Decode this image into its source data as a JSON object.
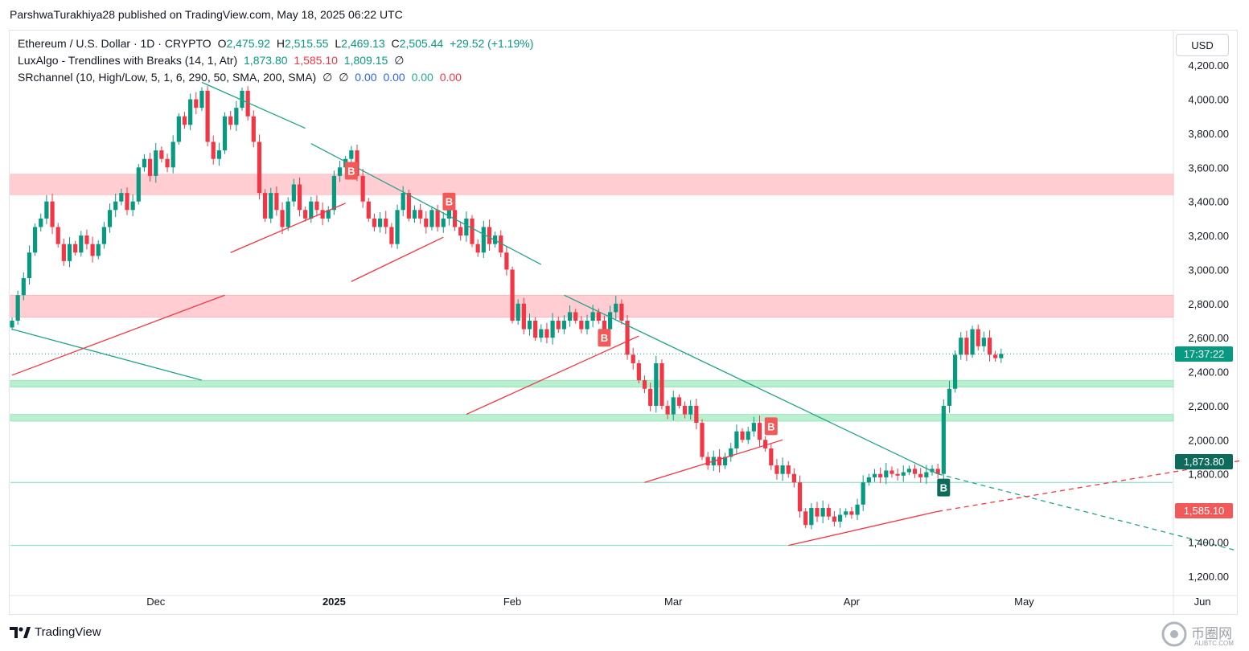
{
  "header": {
    "published_line": "ParshwaTurakhiya28 published on TradingView.com, May 18, 2025 06:22 UTC"
  },
  "legend": {
    "symbol": "Ethereum / U.S. Dollar · 1D · CRYPTO",
    "o_label": "O",
    "o_value": "2,475.92",
    "h_label": "H",
    "h_value": "2,515.55",
    "l_label": "L",
    "l_value": "2,469.13",
    "c_label": "C",
    "c_value": "2,505.44",
    "change": "+29.52 (+1.19%)",
    "luxalgo_name": "LuxAlgo - Trendlines with Breaks (14, 1, Atr)",
    "luxalgo_v1": "1,873.80",
    "luxalgo_v2": "1,585.10",
    "luxalgo_v3": "1,809.15",
    "luxalgo_na": "∅",
    "sr_name": "SRchannel (10, High/Low, 5, 1, 6, 290, 50, SMA, 200, SMA)",
    "sr_na1": "∅",
    "sr_na2": "∅",
    "sr_v1": "0.00",
    "sr_v2": "0.00",
    "sr_v3": "0.00",
    "sr_v4": "0.00"
  },
  "currency": "USD",
  "tags": {
    "countdown": "17:37:22",
    "upper_trend": "1,873.80",
    "lower_trend": "1,585.10"
  },
  "footer": {
    "brand": "TradingView",
    "watermark": "币圈网",
    "watermark_url": "ALIBTC.COM"
  },
  "colors": {
    "up": "#089981",
    "down": "#f23645",
    "resistance_zone": "#ffcdd2",
    "support_zone": "#b9f0cf",
    "trend_green": "#22a28a",
    "trend_red": "#f23645"
  },
  "chart_data": {
    "type": "candlestick",
    "title": "Ethereum / U.S. Dollar · 1D · CRYPTO",
    "ylim": [
      1100,
      4300
    ],
    "y_ticks": [
      1200,
      1400,
      1600,
      1800,
      2000,
      2200,
      2400,
      2600,
      2800,
      3000,
      3200,
      3400,
      3600,
      3800,
      4000,
      4200
    ],
    "y_tick_labels": [
      "1,200.00",
      "1,400.00",
      "1,600.00",
      "1,800.00",
      "2,000.00",
      "2,200.00",
      "2,400.00",
      "2,600.00",
      "2,800.00",
      "3,000.00",
      "3,200.00",
      "3,400.00",
      "3,600.00",
      "3,800.00",
      "4,000.00",
      "4,200.00"
    ],
    "x_range_days": [
      0,
      215
    ],
    "x_ticks": [
      {
        "day": 25,
        "label": "Dec",
        "bold": false
      },
      {
        "day": 56,
        "label": "2025",
        "bold": true
      },
      {
        "day": 87,
        "label": "Feb",
        "bold": false
      },
      {
        "day": 115,
        "label": "Mar",
        "bold": false
      },
      {
        "day": 146,
        "label": "Apr",
        "bold": false
      },
      {
        "day": 176,
        "label": "May",
        "bold": false
      },
      {
        "day": 207,
        "label": "Jun",
        "bold": false
      }
    ],
    "ohlc_keypoints": [
      [
        0,
        2700
      ],
      [
        1,
        2850
      ],
      [
        2,
        2950
      ],
      [
        3,
        3100
      ],
      [
        4,
        3250
      ],
      [
        5,
        3300
      ],
      [
        6,
        3400
      ],
      [
        7,
        3250
      ],
      [
        8,
        3150
      ],
      [
        9,
        3050
      ],
      [
        10,
        3150
      ],
      [
        11,
        3100
      ],
      [
        12,
        3200
      ],
      [
        13,
        3150
      ],
      [
        14,
        3080
      ],
      [
        15,
        3150
      ],
      [
        16,
        3250
      ],
      [
        17,
        3350
      ],
      [
        18,
        3400
      ],
      [
        19,
        3450
      ],
      [
        20,
        3350
      ],
      [
        21,
        3400
      ],
      [
        22,
        3600
      ],
      [
        23,
        3650
      ],
      [
        24,
        3550
      ],
      [
        25,
        3700
      ],
      [
        26,
        3650
      ],
      [
        27,
        3600
      ],
      [
        28,
        3750
      ],
      [
        29,
        3900
      ],
      [
        30,
        3850
      ],
      [
        31,
        4000
      ],
      [
        32,
        3950
      ],
      [
        33,
        4050
      ],
      [
        34,
        3750
      ],
      [
        35,
        3650
      ],
      [
        36,
        3700
      ],
      [
        37,
        3900
      ],
      [
        38,
        3850
      ],
      [
        39,
        3950
      ],
      [
        40,
        4050
      ],
      [
        41,
        3900
      ],
      [
        42,
        3750
      ],
      [
        43,
        3450
      ],
      [
        44,
        3300
      ],
      [
        45,
        3450
      ],
      [
        46,
        3350
      ],
      [
        47,
        3250
      ],
      [
        48,
        3400
      ],
      [
        49,
        3500
      ],
      [
        50,
        3350
      ],
      [
        51,
        3300
      ],
      [
        52,
        3400
      ],
      [
        53,
        3350
      ],
      [
        54,
        3300
      ],
      [
        55,
        3350
      ],
      [
        56,
        3550
      ],
      [
        57,
        3600
      ],
      [
        58,
        3650
      ],
      [
        59,
        3700
      ],
      [
        60,
        3550
      ],
      [
        61,
        3400
      ],
      [
        62,
        3300
      ],
      [
        63,
        3250
      ],
      [
        64,
        3300
      ],
      [
        65,
        3250
      ],
      [
        66,
        3150
      ],
      [
        67,
        3350
      ],
      [
        68,
        3450
      ],
      [
        69,
        3300
      ],
      [
        70,
        3350
      ],
      [
        71,
        3300
      ],
      [
        72,
        3250
      ],
      [
        73,
        3350
      ],
      [
        74,
        3250
      ],
      [
        75,
        3300
      ],
      [
        76,
        3350
      ],
      [
        77,
        3250
      ],
      [
        78,
        3200
      ],
      [
        79,
        3300
      ],
      [
        80,
        3150
      ],
      [
        81,
        3100
      ],
      [
        82,
        3250
      ],
      [
        83,
        3150
      ],
      [
        84,
        3200
      ],
      [
        85,
        3100
      ],
      [
        86,
        3000
      ],
      [
        87,
        2700
      ],
      [
        88,
        2800
      ],
      [
        89,
        2650
      ],
      [
        90,
        2700
      ],
      [
        91,
        2600
      ],
      [
        92,
        2650
      ],
      [
        93,
        2600
      ],
      [
        94,
        2700
      ],
      [
        95,
        2650
      ],
      [
        96,
        2700
      ],
      [
        97,
        2750
      ],
      [
        98,
        2700
      ],
      [
        99,
        2650
      ],
      [
        100,
        2700
      ],
      [
        101,
        2750
      ],
      [
        102,
        2700
      ],
      [
        103,
        2650
      ],
      [
        104,
        2750
      ],
      [
        105,
        2800
      ],
      [
        106,
        2700
      ],
      [
        107,
        2500
      ],
      [
        108,
        2450
      ],
      [
        109,
        2350
      ],
      [
        110,
        2300
      ],
      [
        111,
        2200
      ],
      [
        112,
        2450
      ],
      [
        113,
        2200
      ],
      [
        114,
        2150
      ],
      [
        115,
        2250
      ],
      [
        116,
        2200
      ],
      [
        117,
        2150
      ],
      [
        118,
        2200
      ],
      [
        119,
        2100
      ],
      [
        120,
        1900
      ],
      [
        121,
        1850
      ],
      [
        122,
        1900
      ],
      [
        123,
        1850
      ],
      [
        124,
        1900
      ],
      [
        125,
        1950
      ],
      [
        126,
        2050
      ],
      [
        127,
        2000
      ],
      [
        128,
        2050
      ],
      [
        129,
        2100
      ],
      [
        130,
        2000
      ],
      [
        131,
        1950
      ],
      [
        132,
        1850
      ],
      [
        133,
        1800
      ],
      [
        134,
        1850
      ],
      [
        135,
        1800
      ],
      [
        136,
        1750
      ],
      [
        137,
        1580
      ],
      [
        138,
        1500
      ],
      [
        139,
        1600
      ],
      [
        140,
        1550
      ],
      [
        141,
        1600
      ],
      [
        142,
        1550
      ],
      [
        143,
        1520
      ],
      [
        144,
        1560
      ],
      [
        145,
        1580
      ],
      [
        146,
        1560
      ],
      [
        147,
        1620
      ],
      [
        148,
        1750
      ],
      [
        149,
        1780
      ],
      [
        150,
        1800
      ],
      [
        151,
        1780
      ],
      [
        152,
        1820
      ],
      [
        153,
        1800
      ],
      [
        154,
        1790
      ],
      [
        155,
        1810
      ],
      [
        156,
        1830
      ],
      [
        157,
        1800
      ],
      [
        158,
        1780
      ],
      [
        159,
        1810
      ],
      [
        160,
        1830
      ],
      [
        161,
        1800
      ],
      [
        162,
        2200
      ],
      [
        163,
        2300
      ],
      [
        164,
        2500
      ],
      [
        165,
        2600
      ],
      [
        166,
        2500
      ],
      [
        167,
        2650
      ],
      [
        168,
        2550
      ],
      [
        169,
        2600
      ],
      [
        170,
        2500
      ],
      [
        171,
        2480
      ],
      [
        172,
        2505
      ]
    ],
    "first_date_approx": "2024-11-01",
    "zones": [
      {
        "kind": "resistance",
        "low": 3440,
        "high": 3560
      },
      {
        "kind": "resistance",
        "low": 2720,
        "high": 2850
      },
      {
        "kind": "support",
        "low": 2310,
        "high": 2350
      },
      {
        "kind": "support",
        "low": 2110,
        "high": 2150
      }
    ],
    "horizontal_levels": [
      1750,
      1380
    ],
    "trendlines": [
      {
        "color": "green",
        "from": [
          0,
          2650
        ],
        "to": [
          33,
          2350
        ]
      },
      {
        "color": "green",
        "from": [
          33,
          4100
        ],
        "to": [
          51,
          3830
        ]
      },
      {
        "color": "green",
        "from": [
          52,
          3740
        ],
        "to": [
          92,
          3030
        ]
      },
      {
        "color": "green",
        "from": [
          96,
          2850
        ],
        "to": [
          161,
          1800
        ]
      },
      {
        "color": "green",
        "from": [
          161,
          1800
        ],
        "to": [
          213,
          1350
        ],
        "dashed": true
      },
      {
        "color": "red",
        "from": [
          0,
          2380
        ],
        "to": [
          37,
          2850
        ]
      },
      {
        "color": "red",
        "from": [
          38,
          3100
        ],
        "to": [
          58,
          3390
        ]
      },
      {
        "color": "red",
        "from": [
          59,
          2930
        ],
        "to": [
          75,
          3190
        ]
      },
      {
        "color": "red",
        "from": [
          79,
          2150
        ],
        "to": [
          109,
          2610
        ]
      },
      {
        "color": "red",
        "from": [
          110,
          1750
        ],
        "to": [
          134,
          2000
        ]
      },
      {
        "color": "red",
        "from": [
          135,
          1380
        ],
        "to": [
          161,
          1580
        ]
      },
      {
        "color": "red",
        "from": [
          161,
          1580
        ],
        "to": [
          214,
          1880
        ],
        "dashed": true
      }
    ],
    "signals": [
      {
        "day": 59,
        "price": 3580,
        "label": "B",
        "side": "bearish"
      },
      {
        "day": 76,
        "price": 3400,
        "label": "B",
        "side": "bearish"
      },
      {
        "day": 103,
        "price": 2600,
        "label": "B",
        "side": "bearish"
      },
      {
        "day": 132,
        "price": 2080,
        "label": "B",
        "side": "bearish"
      },
      {
        "day": 162,
        "price": 1720,
        "label": "B",
        "side": "bullish"
      }
    ],
    "last_price": 2505.44
  }
}
